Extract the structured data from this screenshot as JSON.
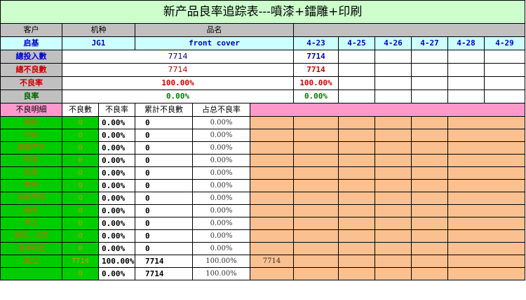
{
  "title": "新产品良率追踪表---噴漆+鐳雕+印刷",
  "header": {
    "customer_label": "客户",
    "model_label": "机种",
    "part_label": "品名"
  },
  "info": {
    "customer": "启基",
    "model": "JG1",
    "part": "front cover"
  },
  "dates": [
    "4-23",
    "4-25",
    "4-26",
    "4-27",
    "4-28",
    "4-29"
  ],
  "summary": {
    "total_input_label": "總投入數",
    "total_input": "7714",
    "total_input_day": "7714",
    "total_defect_label": "總不良數",
    "total_defect": "7714",
    "total_defect_day": "7714",
    "defect_rate_label": "不良率",
    "defect_rate": "100.00%",
    "defect_rate_day": "100.00%",
    "yield_label": "良率",
    "yield": "0.00%",
    "yield_day": "0.00%"
  },
  "detail_headers": {
    "item": "不良明細",
    "count": "不良數",
    "rate": "不良率",
    "cum": "累計不良數",
    "share": "占总不良率"
  },
  "defects": [
    {
      "name": "顆粒",
      "count": "0",
      "rate": "0.00%",
      "cum": "0",
      "share": "0.00%",
      "day": ""
    },
    {
      "name": "毛丝",
      "count": "0",
      "rate": "0.00%",
      "cum": "0",
      "share": "0.00%",
      "day": ""
    },
    {
      "name": "鐳雕不良",
      "count": "0",
      "rate": "0.00%",
      "cum": "0",
      "share": "0.00%",
      "day": ""
    },
    {
      "name": "积漆",
      "count": "0",
      "rate": "0.00%",
      "cum": "0",
      "share": "0.00%",
      "day": ""
    },
    {
      "name": "划伤",
      "count": "0",
      "rate": "0.00%",
      "cum": "0",
      "share": "0.00%",
      "day": ""
    },
    {
      "name": "擦伤",
      "count": "0",
      "rate": "0.00%",
      "cum": "0",
      "share": "0.00%",
      "day": ""
    },
    {
      "name": "印刷不良",
      "count": "0",
      "rate": "0.00%",
      "cum": "0",
      "share": "0.00%",
      "day": ""
    },
    {
      "name": "缩水",
      "count": "0",
      "rate": "0.00%",
      "cum": "0",
      "share": "0.00%",
      "day": ""
    },
    {
      "name": "黑点",
      "count": "0",
      "rate": "0.00%",
      "cum": "0",
      "share": "0.00%",
      "day": ""
    },
    {
      "name": "调机、试漆",
      "count": "0",
      "rate": "0.00%",
      "cum": "0",
      "share": "0.00%",
      "day": ""
    },
    {
      "name": "油漆咬底",
      "count": "0",
      "rate": "0.00%",
      "cum": "0",
      "share": "0.00%",
      "day": ""
    },
    {
      "name": "RCA",
      "count": "7714",
      "rate": "100.00%",
      "cum": "7714",
      "share": "100.00%",
      "day": "7714"
    },
    {
      "name": "",
      "count": "0",
      "rate": "0.00%",
      "cum": "7714",
      "share": "100.00%",
      "day": ""
    }
  ],
  "colors": {
    "title_bg": "#ccffcc",
    "header_gray": "#c0c0c0",
    "info_cyan": "#ccffff",
    "detail_pink": "#ff99cc",
    "defect_green": "#00cc00",
    "daily_peach": "#fac090"
  }
}
